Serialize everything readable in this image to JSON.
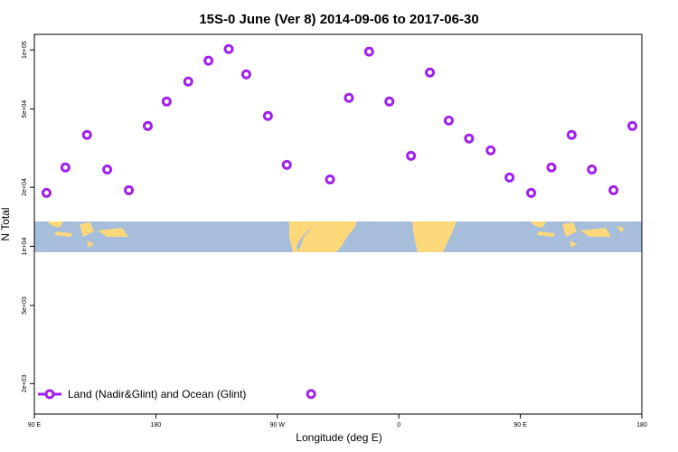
{
  "chart_data": {
    "type": "scatter",
    "title": "15S-0 June (Ver 8)   2014-09-06 to 2017-06-30",
    "x_label": "Longitude (deg E)",
    "y_label": "N Total",
    "log_y": true,
    "xlim": [
      90,
      540
    ],
    "xticks": [
      {
        "value": 90,
        "label": "90 E"
      },
      {
        "value": 180,
        "label": "180"
      },
      {
        "value": 270,
        "label": "90 W"
      },
      {
        "value": 360,
        "label": "0"
      },
      {
        "value": 450,
        "label": "90 E"
      },
      {
        "value": 540,
        "label": "180"
      }
    ],
    "ylim": [
      1400,
      120000
    ],
    "yticks": [
      {
        "value": 2000,
        "label": "2e+03"
      },
      {
        "value": 5000,
        "label": "5e+03"
      },
      {
        "value": 10000,
        "label": "1e+04"
      },
      {
        "value": 20000,
        "label": "2e+04"
      },
      {
        "value": 50000,
        "label": "5e+04"
      },
      {
        "value": 100000,
        "label": "1e+05"
      }
    ],
    "legend": "bottom-left",
    "series": [
      {
        "name": "Land (Nadir&Glint) and Ocean (Glint)",
        "color": "#a020f0",
        "x": [
          99,
          113,
          129,
          144,
          160,
          174,
          188,
          204,
          219,
          234,
          247,
          263,
          277,
          295,
          309,
          323,
          338,
          353,
          369,
          383,
          397,
          412,
          428,
          442,
          458,
          473,
          488,
          503,
          519,
          533
        ],
        "values": [
          18700,
          25200,
          36900,
          24600,
          19300,
          41000,
          54600,
          69000,
          88100,
          101000,
          75100,
          46100,
          26000,
          1770,
          21900,
          57000,
          98000,
          54600,
          28900,
          76700,
          43700,
          35400,
          30800,
          22400,
          18700,
          25200,
          36900,
          24600,
          19300,
          41000
        ]
      }
    ]
  }
}
